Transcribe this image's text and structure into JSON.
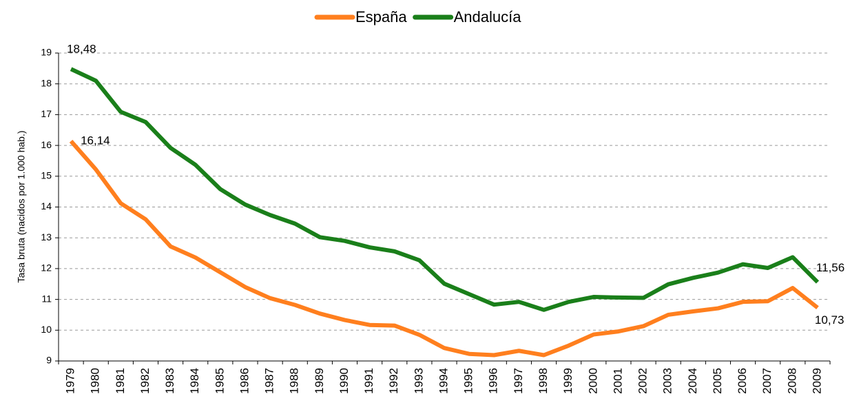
{
  "chart_data": {
    "type": "line",
    "y_label": "Tasa bruta (nacidos por 1.000 hab.)",
    "categories": [
      "1979",
      "1980",
      "1981",
      "1982",
      "1983",
      "1984",
      "1985",
      "1986",
      "1987",
      "1988",
      "1989",
      "1990",
      "1991",
      "1992",
      "1993",
      "1994",
      "1995",
      "1996",
      "1997",
      "1998",
      "1999",
      "2000",
      "2001",
      "2002",
      "2003",
      "2004",
      "2005",
      "2006",
      "2007",
      "2008",
      "2009"
    ],
    "series": [
      {
        "name": "España",
        "color": "#ff7f1e",
        "values": [
          16.14,
          15.22,
          14.12,
          13.6,
          12.72,
          12.36,
          11.88,
          11.4,
          11.04,
          10.82,
          10.54,
          10.33,
          10.17,
          10.15,
          9.85,
          9.42,
          9.23,
          9.19,
          9.33,
          9.19,
          9.5,
          9.86,
          9.96,
          10.13,
          10.5,
          10.61,
          10.71,
          10.92,
          10.94,
          11.37,
          10.73
        ],
        "value_labels": [
          "16,14",
          null,
          null,
          null,
          null,
          null,
          null,
          null,
          null,
          null,
          null,
          null,
          null,
          null,
          null,
          null,
          null,
          null,
          null,
          null,
          null,
          null,
          null,
          null,
          null,
          null,
          null,
          null,
          null,
          null,
          "10,73"
        ]
      },
      {
        "name": "Andalucía",
        "color": "#1a7f1a",
        "values": [
          18.48,
          18.1,
          17.09,
          16.76,
          15.92,
          15.37,
          14.58,
          14.08,
          13.74,
          13.46,
          13.02,
          12.9,
          12.69,
          12.56,
          12.27,
          11.51,
          11.17,
          10.83,
          10.92,
          10.66,
          10.92,
          11.08,
          11.06,
          11.05,
          11.49,
          11.7,
          11.87,
          12.14,
          12.02,
          12.37,
          11.56
        ],
        "value_labels": [
          "18,48",
          null,
          null,
          null,
          null,
          null,
          null,
          null,
          null,
          null,
          null,
          null,
          null,
          null,
          null,
          null,
          null,
          null,
          null,
          null,
          null,
          null,
          null,
          null,
          null,
          null,
          null,
          null,
          null,
          null,
          "11,56"
        ]
      }
    ],
    "ylim": [
      9,
      19
    ],
    "yticks": [
      9,
      10,
      11,
      12,
      13,
      14,
      15,
      16,
      17,
      18,
      19
    ],
    "grid": true,
    "legend": "top"
  }
}
